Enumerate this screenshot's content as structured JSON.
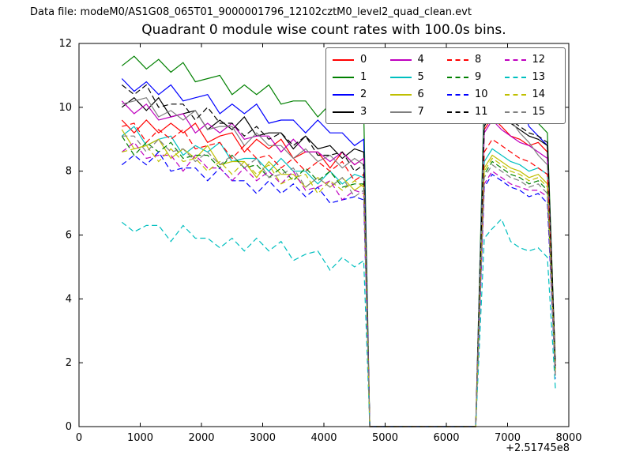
{
  "header": {
    "data_file_label": "Data file: modeM0/AS1G08_065T01_9000001796_12102cztM0_level2_quad_clean.evt"
  },
  "chart_data": {
    "type": "line",
    "title": "Quadrant 0 module wise count rates with 100.0s bins.",
    "xlabel": "",
    "ylabel": "",
    "x_offset_label": "+2.51745e8",
    "xlim": [
      0,
      8000
    ],
    "ylim": [
      0,
      12
    ],
    "xticks": [
      0,
      1000,
      2000,
      3000,
      4000,
      5000,
      6000,
      7000,
      8000
    ],
    "yticks": [
      0,
      2,
      4,
      6,
      8,
      10,
      12
    ],
    "grid": false,
    "legend_position": "upper right, 4 columns",
    "x": [
      700,
      900,
      1100,
      1300,
      1500,
      1700,
      1900,
      2100,
      2300,
      2500,
      2700,
      2900,
      3100,
      3300,
      3500,
      3700,
      3900,
      4100,
      4300,
      4500,
      4650,
      4750,
      6480,
      6620,
      6750,
      6900,
      7050,
      7200,
      7350,
      7500,
      7650,
      7780
    ],
    "series": [
      {
        "name": "0",
        "color": "#ff0000",
        "dash": false,
        "values": [
          9.6,
          9.2,
          9.6,
          9.2,
          9.5,
          9.2,
          9.5,
          8.9,
          9.1,
          9.2,
          8.6,
          9.0,
          8.7,
          9.0,
          8.4,
          8.6,
          8.6,
          8.1,
          8.6,
          8.2,
          8.4,
          0,
          0,
          9.3,
          9.7,
          9.4,
          9.1,
          9.0,
          8.8,
          8.9,
          8.6,
          1.9
        ]
      },
      {
        "name": "1",
        "color": "#008000",
        "dash": false,
        "values": [
          11.3,
          11.6,
          11.2,
          11.5,
          11.1,
          11.4,
          10.8,
          10.9,
          11.0,
          10.4,
          10.7,
          10.4,
          10.7,
          10.1,
          10.2,
          10.2,
          9.7,
          10.1,
          9.7,
          9.7,
          9.9,
          0,
          0,
          10.5,
          11.0,
          10.9,
          10.3,
          10.0,
          9.8,
          9.5,
          9.2,
          2.0
        ]
      },
      {
        "name": "2",
        "color": "#0000ff",
        "dash": false,
        "values": [
          10.9,
          10.5,
          10.8,
          10.4,
          10.7,
          10.2,
          10.3,
          10.4,
          9.8,
          10.1,
          9.8,
          10.1,
          9.5,
          9.6,
          9.6,
          9.2,
          9.6,
          9.2,
          9.2,
          8.8,
          9.0,
          0,
          0,
          9.9,
          10.4,
          10.1,
          9.7,
          10.2,
          9.4,
          9.1,
          8.8,
          1.8
        ]
      },
      {
        "name": "3",
        "color": "#000000",
        "dash": false,
        "values": [
          10.0,
          10.3,
          9.9,
          10.3,
          9.7,
          9.8,
          9.9,
          9.3,
          9.6,
          9.3,
          9.7,
          9.1,
          9.2,
          9.2,
          8.7,
          9.1,
          8.7,
          8.8,
          8.4,
          8.7,
          8.6,
          0,
          0,
          9.4,
          9.9,
          9.6,
          9.5,
          9.3,
          9.1,
          9.0,
          8.8,
          1.9
        ]
      },
      {
        "name": "4",
        "color": "#bf00bf",
        "dash": false,
        "values": [
          10.2,
          9.8,
          10.1,
          9.6,
          9.7,
          9.8,
          9.2,
          9.5,
          9.2,
          9.5,
          9.0,
          9.1,
          9.1,
          8.6,
          9.0,
          8.6,
          8.6,
          8.3,
          8.6,
          8.2,
          8.4,
          0,
          0,
          9.2,
          9.6,
          9.3,
          9.1,
          8.9,
          8.8,
          8.6,
          8.4,
          1.8
        ]
      },
      {
        "name": "5",
        "color": "#00bfbf",
        "dash": false,
        "values": [
          9.1,
          9.4,
          8.8,
          9.0,
          9.1,
          8.5,
          8.8,
          8.6,
          8.9,
          8.3,
          8.4,
          8.4,
          8.0,
          8.4,
          8.0,
          8.0,
          7.6,
          8.0,
          7.6,
          7.9,
          7.8,
          0,
          0,
          8.3,
          8.7,
          8.5,
          8.3,
          8.2,
          8.0,
          8.1,
          7.9,
          1.7
        ]
      },
      {
        "name": "6",
        "color": "#bfbf00",
        "dash": false,
        "values": [
          9.3,
          8.7,
          8.8,
          9.0,
          8.4,
          8.7,
          8.4,
          8.8,
          8.2,
          8.3,
          8.3,
          7.8,
          8.3,
          7.9,
          7.9,
          7.5,
          7.8,
          7.5,
          7.8,
          7.4,
          7.6,
          0,
          0,
          8.1,
          8.5,
          8.3,
          8.1,
          8.0,
          7.8,
          7.9,
          7.6,
          1.7
        ]
      },
      {
        "name": "7",
        "color": "#7f7f7f",
        "dash": false,
        "values": [
          10.1,
          10.2,
          10.3,
          9.7,
          9.9,
          9.6,
          9.9,
          9.3,
          9.4,
          9.4,
          8.8,
          9.2,
          8.8,
          8.8,
          8.4,
          8.7,
          8.3,
          8.5,
          8.1,
          8.4,
          8.2,
          0,
          0,
          9.8,
          10.3,
          10.8,
          9.6,
          9.2,
          8.9,
          8.5,
          8.2,
          1.8
        ]
      },
      {
        "name": "8",
        "color": "#ff0000",
        "dash": true,
        "values": [
          9.4,
          9.5,
          8.9,
          9.3,
          9.0,
          9.3,
          8.7,
          8.8,
          8.9,
          8.4,
          8.8,
          8.4,
          8.5,
          8.1,
          8.4,
          8.0,
          8.3,
          8.0,
          8.3,
          7.7,
          7.9,
          0,
          0,
          8.6,
          9.0,
          8.8,
          8.6,
          8.4,
          8.3,
          8.1,
          7.9,
          1.7
        ]
      },
      {
        "name": "9",
        "color": "#008000",
        "dash": true,
        "values": [
          9.1,
          8.5,
          8.9,
          8.6,
          8.9,
          8.4,
          8.5,
          8.5,
          8.1,
          8.5,
          8.1,
          8.2,
          7.8,
          8.1,
          7.7,
          8.1,
          7.7,
          8.0,
          7.5,
          7.6,
          7.6,
          0,
          0,
          7.9,
          8.3,
          8.1,
          7.9,
          7.8,
          7.6,
          7.7,
          7.4,
          1.6
        ]
      },
      {
        "name": "10",
        "color": "#0000ff",
        "dash": true,
        "values": [
          8.2,
          8.5,
          8.2,
          8.6,
          8.0,
          8.1,
          8.1,
          7.7,
          8.1,
          7.7,
          7.7,
          7.3,
          7.7,
          7.3,
          7.6,
          7.2,
          7.5,
          7.0,
          7.1,
          7.2,
          7.1,
          0,
          0,
          7.5,
          7.9,
          7.7,
          7.5,
          7.4,
          7.2,
          7.3,
          7.0,
          1.5
        ]
      },
      {
        "name": "11",
        "color": "#000000",
        "dash": true,
        "values": [
          10.7,
          10.4,
          10.7,
          10.0,
          10.1,
          10.1,
          9.6,
          10.0,
          9.5,
          9.5,
          9.1,
          9.4,
          9.0,
          9.2,
          8.8,
          9.1,
          8.5,
          8.5,
          8.6,
          8.0,
          8.2,
          0,
          0,
          9.4,
          9.9,
          9.7,
          9.6,
          9.4,
          9.2,
          9.1,
          8.9,
          1.9
        ]
      },
      {
        "name": "12",
        "color": "#bf00bf",
        "dash": true,
        "values": [
          8.6,
          8.9,
          8.4,
          8.5,
          8.5,
          8.0,
          8.5,
          8.1,
          8.1,
          7.7,
          8.1,
          7.7,
          8.0,
          7.6,
          8.0,
          7.4,
          7.5,
          7.7,
          7.1,
          7.4,
          7.3,
          0,
          0,
          7.6,
          8.0,
          7.8,
          7.6,
          7.5,
          7.4,
          7.4,
          7.2,
          1.6
        ]
      },
      {
        "name": "13",
        "color": "#00bfbf",
        "dash": true,
        "values": [
          6.4,
          6.1,
          6.3,
          6.3,
          5.8,
          6.3,
          5.9,
          5.9,
          5.6,
          5.9,
          5.5,
          5.9,
          5.5,
          5.8,
          5.2,
          5.4,
          5.5,
          4.9,
          5.3,
          5.0,
          5.2,
          0,
          0,
          5.9,
          6.2,
          6.5,
          5.8,
          5.6,
          5.5,
          5.6,
          5.3,
          1.2
        ]
      },
      {
        "name": "14",
        "color": "#bfbf00",
        "dash": true,
        "values": [
          8.6,
          8.7,
          8.8,
          8.3,
          8.7,
          8.3,
          8.4,
          8.0,
          8.3,
          7.9,
          8.3,
          7.9,
          8.2,
          7.6,
          7.8,
          7.9,
          7.3,
          7.7,
          7.4,
          7.7,
          7.5,
          0,
          0,
          8.0,
          8.4,
          8.2,
          8.0,
          7.9,
          7.7,
          7.8,
          7.5,
          1.6
        ]
      },
      {
        "name": "15",
        "color": "#7f7f7f",
        "dash": true,
        "values": [
          9.1,
          9.1,
          8.6,
          9.0,
          8.6,
          8.7,
          8.3,
          8.6,
          8.2,
          8.5,
          8.1,
          8.4,
          7.8,
          7.9,
          8.1,
          7.5,
          7.8,
          7.5,
          7.8,
          7.2,
          7.4,
          0,
          0,
          7.8,
          8.2,
          8.0,
          7.8,
          7.7,
          7.5,
          7.6,
          7.3,
          1.6
        ]
      }
    ]
  }
}
